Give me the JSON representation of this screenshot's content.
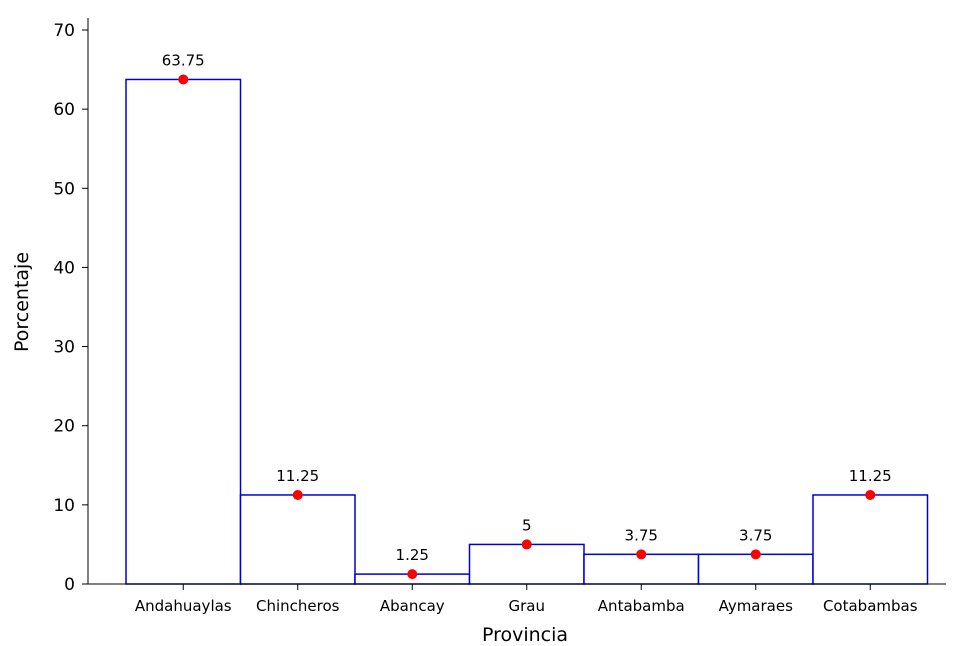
{
  "colors": {
    "bar_stroke": "#0000dd",
    "bar_fill": "#ffffff",
    "point": "#ff0000",
    "axis": "#000000"
  },
  "chart_data": {
    "type": "bar",
    "title": "",
    "xlabel": "Provincia",
    "ylabel": "Porcentaje",
    "categories": [
      "Andahuaylas",
      "Chincheros",
      "Abancay",
      "Grau",
      "Antabamba",
      "Aymaraes",
      "Cotabambas"
    ],
    "values": [
      63.75,
      11.25,
      1.25,
      5,
      3.75,
      3.75,
      11.25
    ],
    "data_labels": [
      "63.75",
      "11.25",
      "1.25",
      "5",
      "3.75",
      "3.75",
      "11.25"
    ],
    "ylim": [
      0,
      70
    ],
    "yticks": [
      0,
      10,
      20,
      30,
      40,
      50,
      60,
      70
    ],
    "grid": false,
    "markers": "red dot at top of each bar"
  }
}
